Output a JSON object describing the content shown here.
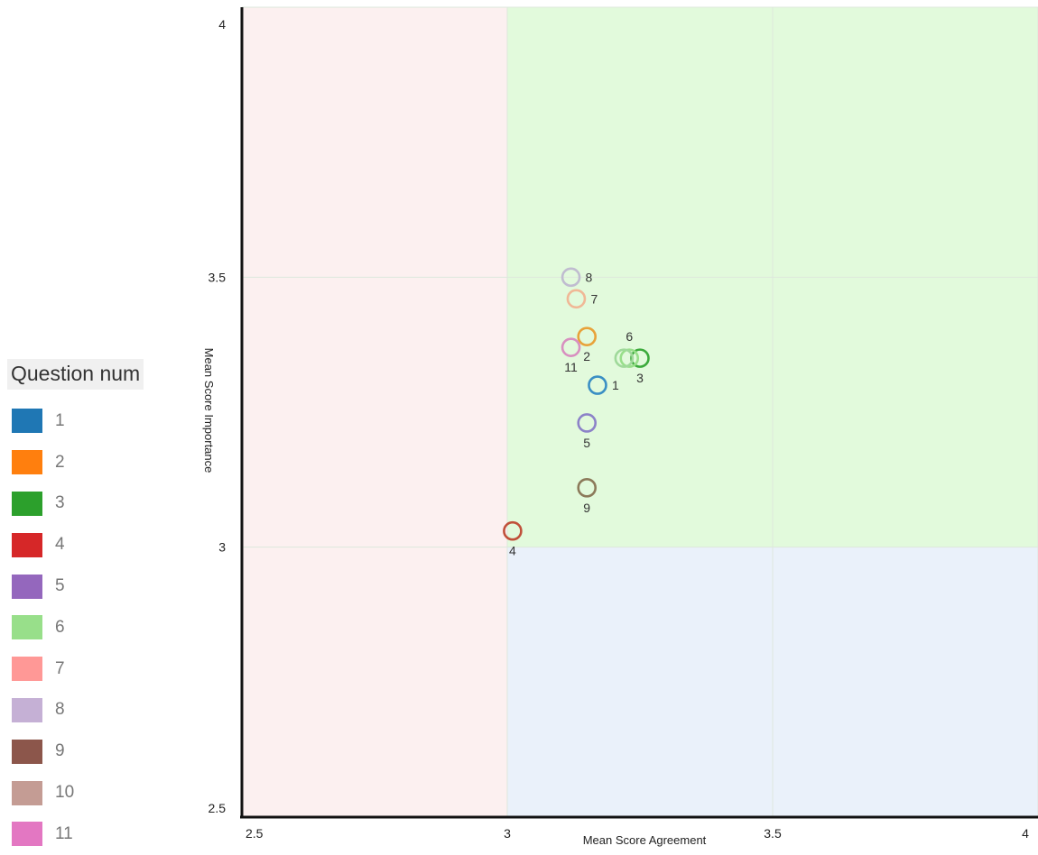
{
  "chart_data": {
    "type": "scatter",
    "xlabel": "Mean Score Agreement",
    "ylabel": "Mean Score Importance",
    "xlim": [
      2.5,
      4
    ],
    "ylim": [
      2.5,
      4
    ],
    "x_ticks": [
      "2.5",
      "3",
      "3.5",
      "4"
    ],
    "y_ticks": [
      "2.5",
      "3",
      "3.5",
      "4"
    ],
    "grid": true,
    "quadrants": [
      {
        "x": [
          2.5,
          3
        ],
        "y": [
          2.5,
          4
        ],
        "color": "#fcf0f0"
      },
      {
        "x": [
          3,
          4
        ],
        "y": [
          3,
          4
        ],
        "color": "#e2fadc"
      },
      {
        "x": [
          3,
          4
        ],
        "y": [
          2.5,
          3
        ],
        "color": "#eaf1fa"
      }
    ],
    "legend": {
      "title": "Question num",
      "placement": "left",
      "entries": [
        {
          "label": "1",
          "color": "#1f77b4"
        },
        {
          "label": "2",
          "color": "#ff7f0e"
        },
        {
          "label": "3",
          "color": "#2ca02c"
        },
        {
          "label": "4",
          "color": "#d62728"
        },
        {
          "label": "5",
          "color": "#9467bd"
        },
        {
          "label": "6",
          "color": "#98df8a"
        },
        {
          "label": "7",
          "color": "#ff9896"
        },
        {
          "label": "8",
          "color": "#c5b0d5"
        },
        {
          "label": "9",
          "color": "#8c564b"
        },
        {
          "label": "10",
          "color": "#c49c94"
        },
        {
          "label": "11",
          "color": "#e377c2"
        }
      ]
    },
    "points": [
      {
        "label": "1",
        "x": 3.17,
        "y": 3.3,
        "color": "#3a8fc4",
        "label_pos": "right"
      },
      {
        "label": "2",
        "x": 3.15,
        "y": 3.39,
        "color": "#e8a23a",
        "label_pos": "below"
      },
      {
        "label": "3",
        "x": 3.25,
        "y": 3.35,
        "color": "#3caa3c",
        "label_pos": "below"
      },
      {
        "label": "4",
        "x": 3.01,
        "y": 3.03,
        "color": "#c0503a",
        "label_pos": "below"
      },
      {
        "label": "5",
        "x": 3.15,
        "y": 3.23,
        "color": "#8c82c8",
        "label_pos": "below"
      },
      {
        "label": "6",
        "x": 3.23,
        "y": 3.35,
        "color": "#98df8a",
        "label_pos": "above"
      },
      {
        "label": "",
        "x": 3.22,
        "y": 3.35,
        "color": "#9fd99a",
        "label_pos": "none"
      },
      {
        "label": "7",
        "x": 3.13,
        "y": 3.46,
        "color": "#f0b896",
        "label_pos": "right"
      },
      {
        "label": "8",
        "x": 3.12,
        "y": 3.5,
        "color": "#c0bcd0",
        "label_pos": "right"
      },
      {
        "label": "9",
        "x": 3.15,
        "y": 3.11,
        "color": "#8c7a5a",
        "label_pos": "below"
      },
      {
        "label": "11",
        "x": 3.12,
        "y": 3.37,
        "color": "#d890c0",
        "label_pos": "below"
      }
    ]
  }
}
